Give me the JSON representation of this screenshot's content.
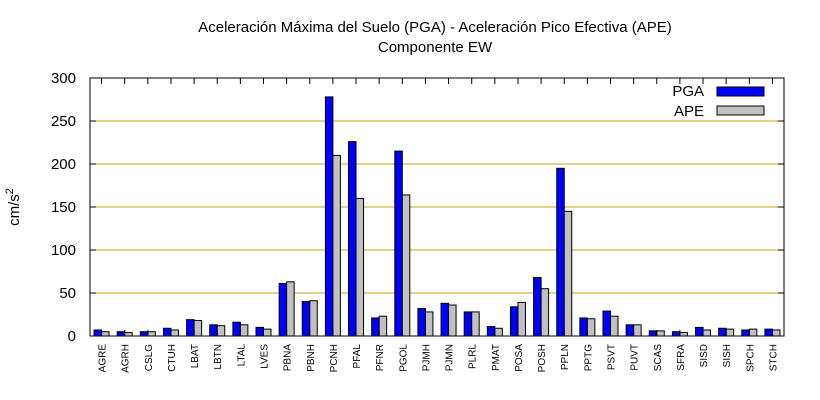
{
  "chart_data": {
    "type": "bar",
    "title": "Aceleración Máxima del Suelo (PGA) -  Aceleración Pico Efectiva (APE)",
    "subtitle": "Componente EW",
    "ylabel_base": "cm/s",
    "ylabel_sup": "2",
    "xlabel": "",
    "ylim": [
      0,
      300
    ],
    "yticks": [
      0,
      50,
      100,
      150,
      200,
      250,
      300
    ],
    "grid": "horizontal",
    "legend_position": "top-right",
    "categories": [
      "AGRE",
      "AGRH",
      "CSLG",
      "CTUH",
      "LBAT",
      "LBTN",
      "LTAL",
      "LVES",
      "PBNA",
      "PBNH",
      "PCNH",
      "PFAL",
      "PFNR",
      "PGOL",
      "PJMH",
      "PJMN",
      "PLRL",
      "PMAT",
      "POSA",
      "POSH",
      "PPLN",
      "PPTG",
      "PSVT",
      "PUVT",
      "SCAS",
      "SFRA",
      "SISD",
      "SISH",
      "SPCH",
      "STCH"
    ],
    "series": [
      {
        "name": "PGA",
        "color": "#0000ff",
        "values": [
          7,
          5,
          5,
          9,
          19,
          13,
          16,
          10,
          61,
          40,
          278,
          226,
          21,
          215,
          32,
          38,
          28,
          11,
          34,
          68,
          195,
          21,
          29,
          13,
          6,
          5,
          10,
          9,
          7,
          8
        ]
      },
      {
        "name": "APE",
        "color": "#c0c0c0",
        "values": [
          5,
          4,
          5,
          7,
          18,
          12,
          13,
          8,
          63,
          41,
          210,
          160,
          23,
          164,
          28,
          36,
          28,
          9,
          39,
          55,
          145,
          20,
          23,
          13,
          6,
          4,
          7,
          8,
          8,
          7
        ]
      }
    ]
  }
}
